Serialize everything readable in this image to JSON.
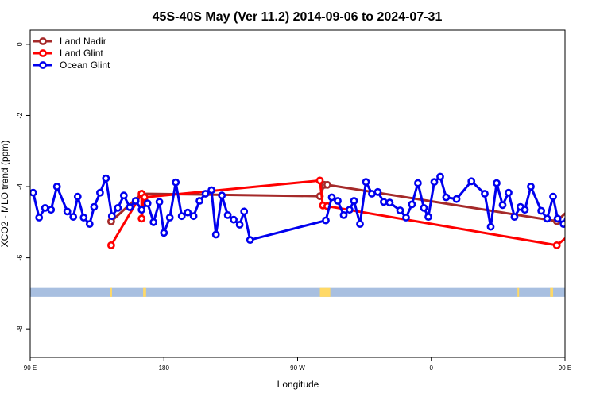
{
  "chart_data": {
    "type": "line",
    "title": "45S-40S May (Ver 11.2)   2014-09-06 to 2024-07-31",
    "xlabel": "Longitude",
    "ylabel": "XCO2 - MLO trend (ppm)",
    "xlim": [
      90,
      450
    ],
    "ylim": [
      0.4,
      -8.8
    ],
    "x_ticks": [
      {
        "value": 90,
        "label": "90 E"
      },
      {
        "value": 180,
        "label": "180"
      },
      {
        "value": 270,
        "label": "90 W"
      },
      {
        "value": 360,
        "label": "0"
      },
      {
        "value": 450,
        "label": "90 E"
      },
      {
        "value": 540,
        "label": "180"
      }
    ],
    "y_ticks": [
      {
        "value": 0,
        "label": "0"
      },
      {
        "value": -2,
        "label": "-2"
      },
      {
        "value": -4,
        "label": "-4"
      },
      {
        "value": -6,
        "label": "-6"
      },
      {
        "value": -8,
        "label": "-8"
      }
    ],
    "legend_position": "top-left",
    "band": {
      "y_top": -6.85,
      "y_bottom": -7.1,
      "color": "#a8bfe0",
      "land_color": "#ffd966",
      "land_x": [
        [
          144,
          145
        ],
        [
          166,
          168
        ],
        [
          285,
          292
        ],
        [
          418,
          419
        ],
        [
          440,
          442
        ]
      ]
    },
    "series": [
      {
        "name": "Land Nadir",
        "color": "#a52a2a",
        "points": [
          [
            144.5,
            -4.98
          ],
          [
            165,
            -4.2
          ],
          [
            285,
            -4.27
          ],
          [
            288,
            -3.95
          ],
          [
            290,
            -3.95
          ],
          [
            444.5,
            -4.97
          ],
          [
            464.5,
            -4.2
          ]
        ]
      },
      {
        "name": "Land Glint",
        "color": "#ff0000",
        "points": [
          [
            144.5,
            -5.65
          ],
          [
            165,
            -4.2
          ],
          [
            165,
            -4.9
          ],
          [
            167,
            -4.3
          ],
          [
            285,
            -3.83
          ],
          [
            287,
            -4.53
          ],
          [
            290,
            -4.55
          ],
          [
            444.5,
            -5.65
          ],
          [
            465,
            -4.95
          ],
          [
            467,
            -4.3
          ]
        ]
      },
      {
        "name": "Ocean Glint",
        "color": "#0000ee",
        "points": [
          [
            92,
            -4.17
          ],
          [
            96,
            -4.87
          ],
          [
            100,
            -4.6
          ],
          [
            104,
            -4.65
          ],
          [
            108,
            -4.0
          ],
          [
            115,
            -4.7
          ],
          [
            119,
            -4.85
          ],
          [
            122,
            -4.28
          ],
          [
            126,
            -4.87
          ],
          [
            130,
            -5.05
          ],
          [
            133,
            -4.57
          ],
          [
            137,
            -4.17
          ],
          [
            141,
            -3.77
          ],
          [
            145,
            -4.83
          ],
          [
            149,
            -4.6
          ],
          [
            153,
            -4.25
          ],
          [
            157,
            -4.58
          ],
          [
            161,
            -4.4
          ],
          [
            165,
            -4.65
          ],
          [
            169,
            -4.47
          ],
          [
            173,
            -5.0
          ],
          [
            177,
            -4.43
          ],
          [
            180,
            -5.3
          ],
          [
            184,
            -4.87
          ],
          [
            188,
            -3.88
          ],
          [
            192,
            -4.83
          ],
          [
            196,
            -4.73
          ],
          [
            200,
            -4.83
          ],
          [
            204,
            -4.4
          ],
          [
            208,
            -4.2
          ],
          [
            212,
            -4.1
          ],
          [
            215,
            -5.35
          ],
          [
            219,
            -4.25
          ],
          [
            223,
            -4.8
          ],
          [
            227,
            -4.93
          ],
          [
            231,
            -5.07
          ],
          [
            234,
            -4.7
          ],
          [
            238,
            -5.5
          ],
          [
            289,
            -4.95
          ],
          [
            293,
            -4.3
          ],
          [
            297,
            -4.4
          ],
          [
            301,
            -4.8
          ],
          [
            305,
            -4.65
          ],
          [
            308,
            -4.4
          ],
          [
            312,
            -5.05
          ],
          [
            316,
            -3.87
          ],
          [
            320,
            -4.2
          ],
          [
            324,
            -4.15
          ],
          [
            328,
            -4.43
          ],
          [
            332,
            -4.45
          ],
          [
            339,
            -4.67
          ],
          [
            343,
            -4.87
          ],
          [
            347,
            -4.5
          ],
          [
            351,
            -3.9
          ],
          [
            355,
            -4.6
          ],
          [
            358,
            -4.85
          ],
          [
            362,
            -3.87
          ],
          [
            366,
            -3.72
          ],
          [
            370,
            -4.3
          ],
          [
            377,
            -4.35
          ],
          [
            387,
            -3.85
          ],
          [
            396,
            -4.2
          ],
          [
            400,
            -5.13
          ],
          [
            404,
            -3.9
          ],
          [
            408,
            -4.52
          ],
          [
            412,
            -4.17
          ],
          [
            416,
            -4.85
          ],
          [
            420,
            -4.57
          ],
          [
            423,
            -4.65
          ],
          [
            427,
            -4.0
          ],
          [
            434,
            -4.68
          ],
          [
            438,
            -4.9
          ],
          [
            442,
            -4.28
          ],
          [
            445,
            -4.9
          ],
          [
            449,
            -5.05
          ],
          [
            453,
            -4.57
          ],
          [
            456,
            -4.17
          ],
          [
            460,
            -3.77
          ],
          [
            464,
            -4.83
          ],
          [
            467,
            -4.6
          ],
          [
            471,
            -4.25
          ],
          [
            475,
            -4.58
          ]
        ]
      }
    ]
  }
}
